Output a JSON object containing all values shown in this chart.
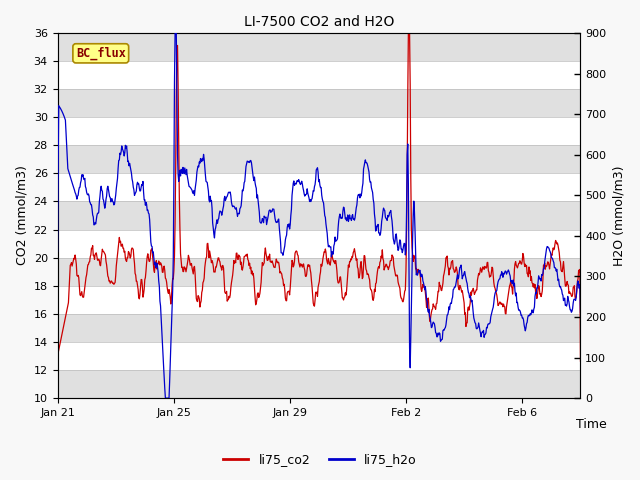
{
  "title": "LI-7500 CO2 and H2O",
  "xlabel": "Time",
  "ylabel_left": "CO2 (mmol/m3)",
  "ylabel_right": "H2O (mmol/m3)",
  "ylim_left": [
    10,
    36
  ],
  "ylim_right": [
    0,
    900
  ],
  "yticks_left": [
    10,
    12,
    14,
    16,
    18,
    20,
    22,
    24,
    26,
    28,
    30,
    32,
    34,
    36
  ],
  "yticks_right": [
    0,
    100,
    200,
    300,
    400,
    500,
    600,
    700,
    800,
    900
  ],
  "xtick_positions": [
    0,
    4,
    8,
    12,
    16
  ],
  "xtick_labels": [
    "Jan 21",
    "Jan 25",
    "Jan 29",
    "Feb 2",
    "Feb 6"
  ],
  "xlim": [
    0,
    18
  ],
  "annotation_text": "BC_flux",
  "annotation_bg": "#FFFF88",
  "annotation_border": "#AA8800",
  "plot_bg": "#ffffff",
  "band_color_dark": "#e0e0e0",
  "band_color_light": "#f0f0f0",
  "co2_color": "#cc0000",
  "h2o_color": "#0000cc",
  "legend_labels": [
    "li75_co2",
    "li75_h2o"
  ],
  "title_fontsize": 10,
  "axis_fontsize": 9,
  "tick_fontsize": 8,
  "line_width": 0.9,
  "figsize": [
    6.4,
    4.8
  ],
  "dpi": 100
}
